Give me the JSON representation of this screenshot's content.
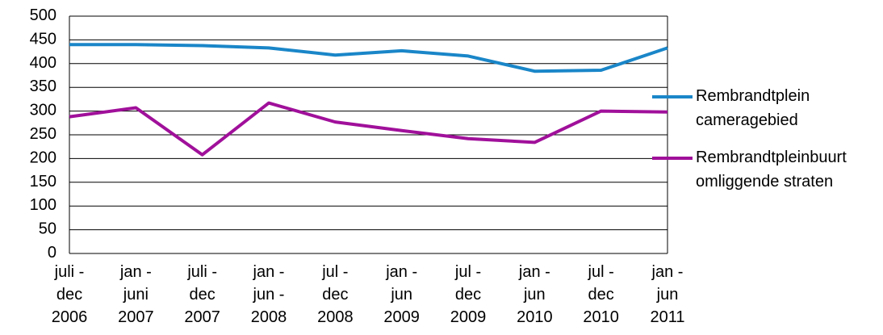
{
  "chart_data": {
    "type": "line",
    "categories": [
      "juli -\ndec\n2006",
      "jan -\njuni\n2007",
      "juli -\ndec\n2007",
      "jan -\njun -\n2008",
      "jul -\ndec\n2008",
      "jan -\njun\n2009",
      "jul -\ndec\n2009",
      "jan -\njun\n2010",
      "jul -\ndec\n2010",
      "jan -\njun\n2011"
    ],
    "series": [
      {
        "name": "Rembrandtplein\ncameragebied",
        "color": "#1a86c8",
        "values": [
          440,
          440,
          438,
          433,
          418,
          427,
          416,
          384,
          386,
          433
        ]
      },
      {
        "name": "Rembrandtpleinbuurt\nomliggende  straten",
        "color": "#a0109a",
        "values": [
          288,
          307,
          208,
          317,
          277,
          259,
          242,
          234,
          300,
          298
        ]
      }
    ],
    "ylim": [
      0,
      500
    ],
    "yticks": [
      0,
      50,
      100,
      150,
      200,
      250,
      300,
      350,
      400,
      450,
      500
    ],
    "grid": true,
    "legend": "right"
  }
}
